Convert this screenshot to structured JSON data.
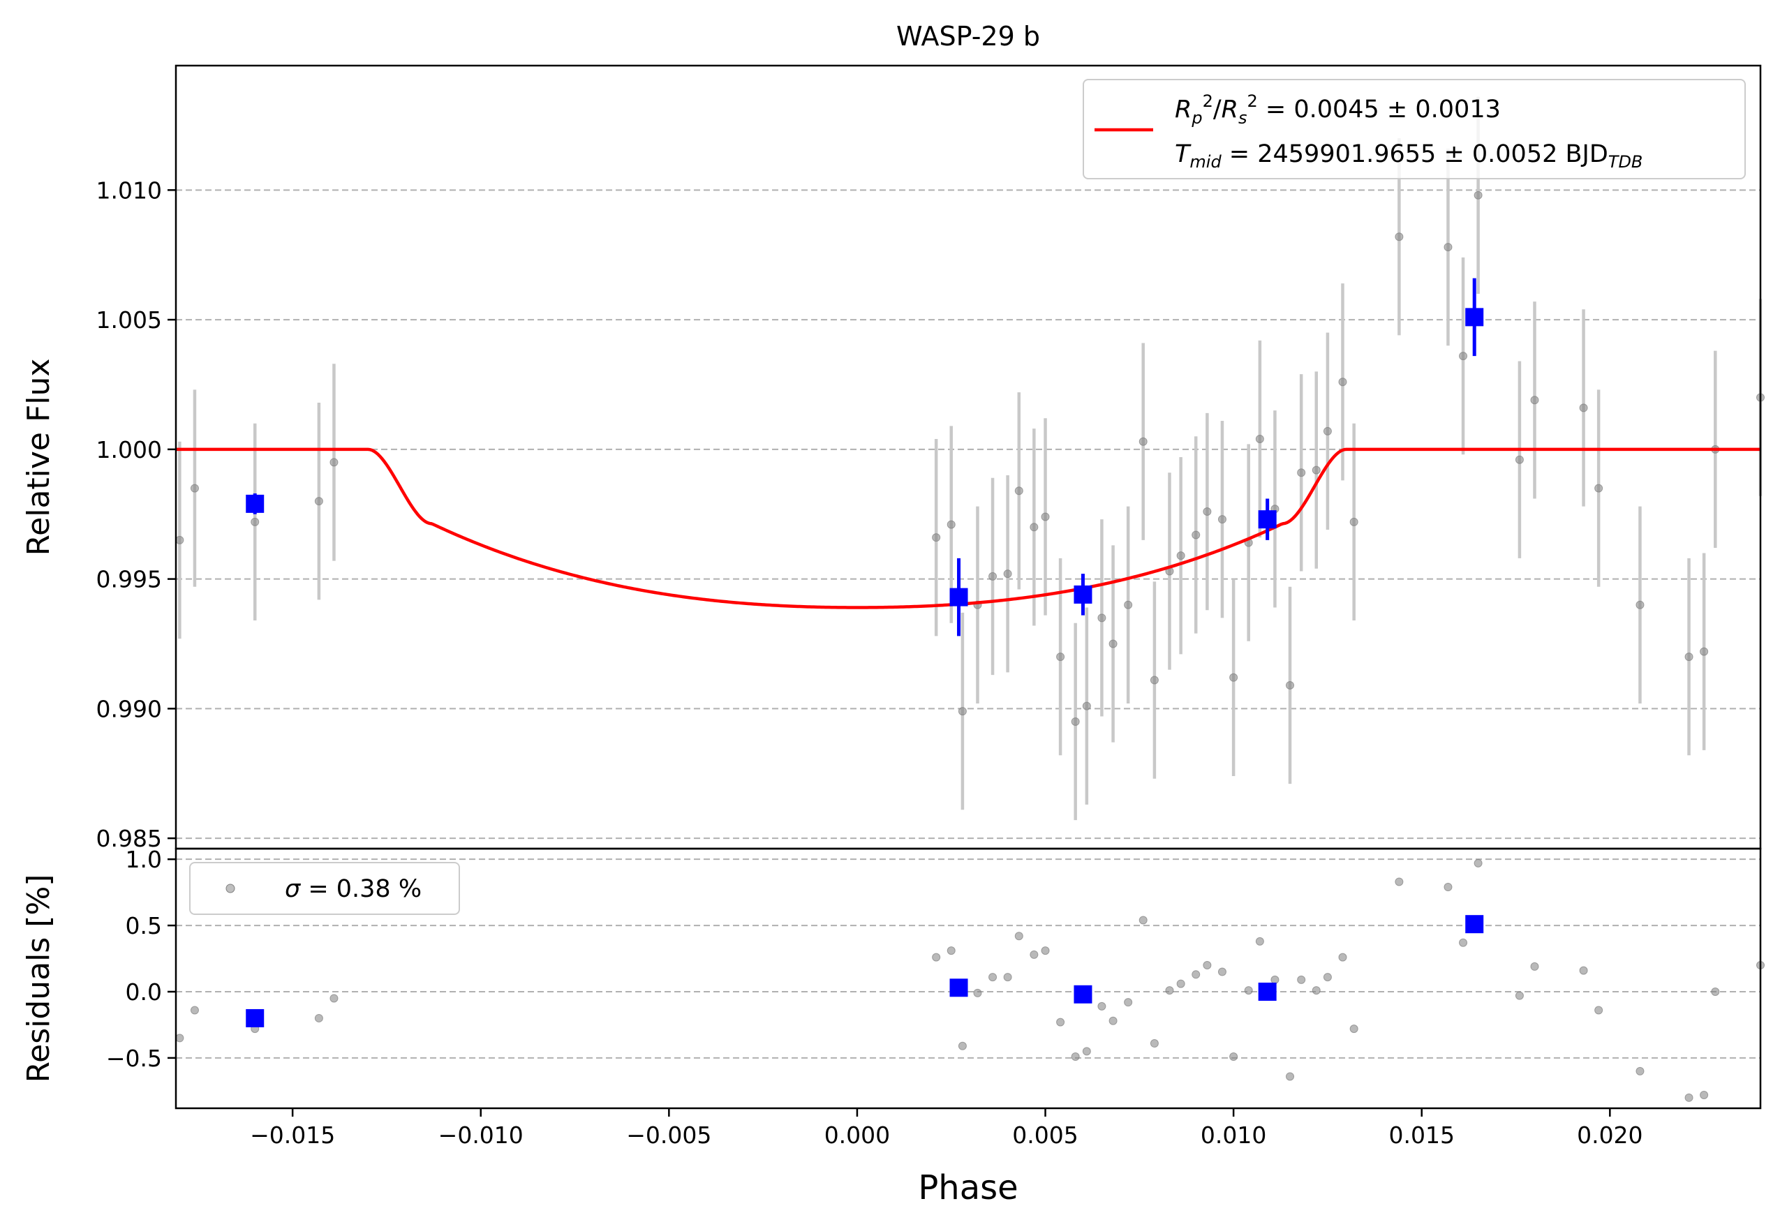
{
  "title": "WASP-29 b",
  "chart_data": [
    {
      "panel": "main",
      "type": "scatter",
      "title": "WASP-29 b",
      "xlabel": "Phase",
      "ylabel": "Relative Flux",
      "xlim": [
        -0.0181,
        0.024
      ],
      "ylim": [
        0.9846,
        1.0148
      ],
      "xticks": [
        -0.015,
        -0.01,
        -0.005,
        0.0,
        0.005,
        0.01,
        0.015,
        0.02
      ],
      "xtick_labels": [
        "−0.015",
        "−0.010",
        "−0.005",
        "0.000",
        "0.005",
        "0.010",
        "0.015",
        "0.020"
      ],
      "yticks": [
        0.985,
        0.99,
        0.995,
        1.0,
        1.005,
        1.01
      ],
      "ytick_labels": [
        "0.985",
        "0.990",
        "0.995",
        "1.000",
        "1.005",
        "1.010"
      ],
      "grid": "y-dashed",
      "legend": {
        "position": "top-right",
        "line1": "Rₚ²/Rₛ² = 0.0045 ± 0.0013",
        "line1_parts": {
          "a": "R",
          "a_sub": "p",
          "a_sup": "2",
          "b": "R",
          "b_sub": "s",
          "b_sup": "2",
          "rest": " = 0.0045 ± 0.0013"
        },
        "line2": "T_mid = 2459901.9655 ± 0.0052 BJD_TDB",
        "line2_parts": {
          "a": "T",
          "a_sub": "mid",
          "rest": " = 2459901.9655 ± 0.0052 BJD",
          "tail_sub": "TDB"
        }
      },
      "model": {
        "color": "#ff0000",
        "depth": 0.0061,
        "t1": -0.013,
        "t2": -0.0113,
        "t3": 0.0113,
        "t4": 0.013
      },
      "raw_points": {
        "color": "#808080",
        "x": [
          -0.018,
          -0.0176,
          -0.016,
          -0.0143,
          -0.0139,
          0.0021,
          0.0025,
          0.0028,
          0.0032,
          0.0036,
          0.004,
          0.0043,
          0.0047,
          0.005,
          0.0054,
          0.0058,
          0.0061,
          0.0065,
          0.0068,
          0.0072,
          0.0076,
          0.0079,
          0.0083,
          0.0086,
          0.009,
          0.0093,
          0.0097,
          0.01,
          0.0104,
          0.0107,
          0.0111,
          0.0115,
          0.0118,
          0.0122,
          0.0125,
          0.0129,
          0.0132,
          0.0144,
          0.0157,
          0.0161,
          0.0165,
          0.0176,
          0.018,
          0.0193,
          0.0197,
          0.0208,
          0.0221,
          0.0225,
          0.0228,
          0.024
        ],
        "y": [
          0.9965,
          0.9985,
          0.9972,
          0.998,
          0.9995,
          0.9966,
          0.9971,
          0.9899,
          0.994,
          0.9951,
          0.9952,
          0.9984,
          0.997,
          0.9974,
          0.992,
          0.9895,
          0.9901,
          0.9935,
          0.9925,
          0.994,
          1.0003,
          0.9911,
          0.9953,
          0.9959,
          0.9967,
          0.9976,
          0.9973,
          0.9912,
          0.9964,
          1.0004,
          0.9977,
          0.9909,
          0.9991,
          0.9992,
          1.0007,
          1.0026,
          0.9972,
          1.0082,
          1.0078,
          1.0036,
          1.0098,
          0.9996,
          1.0019,
          1.0016,
          0.9985,
          0.994,
          0.992,
          0.9922,
          1.0,
          1.002
        ],
        "yerr": 0.0038
      },
      "binned_points": {
        "color": "#0000ff",
        "x": [
          -0.016,
          0.0027,
          0.006,
          0.0109,
          0.0164
        ],
        "y": [
          0.9979,
          0.9943,
          0.9944,
          0.9973,
          1.0051
        ],
        "yerr": [
          0.0004,
          0.0015,
          0.0008,
          0.0008,
          0.0015
        ]
      }
    },
    {
      "panel": "residuals",
      "type": "scatter",
      "xlabel": "Phase",
      "ylabel": "Residuals [%]",
      "xlim": [
        -0.0181,
        0.024
      ],
      "ylim": [
        -0.88,
        1.08
      ],
      "yticks": [
        -0.5,
        0.0,
        0.5,
        1.0
      ],
      "ytick_labels": [
        "−0.5",
        "0.0",
        "0.5",
        "1.0"
      ],
      "grid": "y-dashed",
      "legend": {
        "position": "top-left",
        "label": "σ = 0.38 %",
        "sigma_symbol": "σ",
        "rest": " = 0.38 %"
      },
      "raw_points": {
        "color": "#808080",
        "x": [
          -0.018,
          -0.0176,
          -0.016,
          -0.0143,
          -0.0139,
          0.0021,
          0.0025,
          0.0028,
          0.0032,
          0.0036,
          0.004,
          0.0043,
          0.0047,
          0.005,
          0.0054,
          0.0058,
          0.0061,
          0.0065,
          0.0068,
          0.0072,
          0.0076,
          0.0079,
          0.0083,
          0.0086,
          0.009,
          0.0093,
          0.0097,
          0.01,
          0.0104,
          0.0107,
          0.0111,
          0.0115,
          0.0118,
          0.0122,
          0.0125,
          0.0129,
          0.0132,
          0.0144,
          0.0157,
          0.0161,
          0.0165,
          0.0176,
          0.018,
          0.0193,
          0.0197,
          0.0208,
          0.0221,
          0.0225,
          0.0228,
          0.024
        ],
        "y": [
          -0.35,
          -0.14,
          -0.28,
          -0.2,
          -0.05,
          0.26,
          0.31,
          -0.41,
          -0.01,
          0.11,
          0.11,
          0.42,
          0.28,
          0.31,
          -0.23,
          -0.49,
          -0.45,
          -0.11,
          -0.22,
          -0.08,
          0.54,
          -0.39,
          0.01,
          0.06,
          0.13,
          0.2,
          0.15,
          -0.49,
          0.01,
          0.38,
          0.09,
          -0.64,
          0.09,
          0.01,
          0.11,
          0.26,
          -0.28,
          0.83,
          0.79,
          0.37,
          0.97,
          -0.03,
          0.19,
          0.16,
          -0.14,
          -0.6,
          -0.8,
          -0.78,
          0.0,
          0.2
        ]
      },
      "binned_points": {
        "color": "#0000ff",
        "x": [
          -0.016,
          0.0027,
          0.006,
          0.0109,
          0.0164
        ],
        "y": [
          -0.2,
          0.03,
          -0.02,
          0.0,
          0.51
        ]
      }
    }
  ]
}
